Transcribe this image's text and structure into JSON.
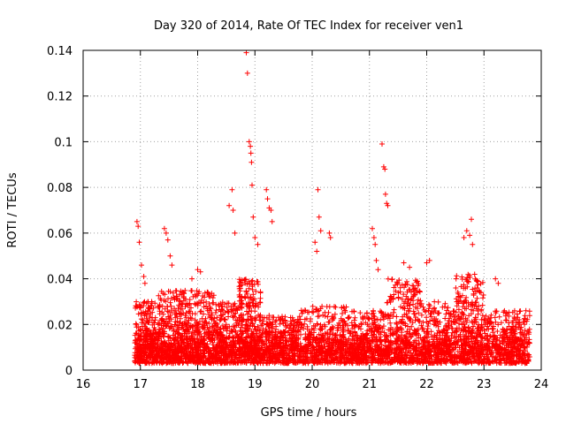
{
  "chart_data": {
    "type": "scatter",
    "title": "Day 320 of 2014, Rate Of TEC Index for receiver ven1",
    "xlabel": "GPS time / hours",
    "ylabel": "ROTI / TECUs",
    "xlim": [
      16,
      24
    ],
    "ylim": [
      0,
      0.14
    ],
    "xticks": [
      "16",
      "17",
      "18",
      "19",
      "20",
      "21",
      "22",
      "23",
      "24"
    ],
    "yticks": [
      "0",
      "0.02",
      "0.04",
      "0.06",
      "0.08",
      "0.1",
      "0.12",
      "0.14"
    ],
    "grid": true,
    "marker": "+",
    "color": "#ff0000",
    "data_range_x": [
      16.9,
      23.8
    ],
    "series": [
      {
        "name": "ven1 ROTI",
        "baseline_band": [
          0.003,
          0.02
        ],
        "notable_points": [
          {
            "x": 16.94,
            "y": 0.065
          },
          {
            "x": 16.96,
            "y": 0.063
          },
          {
            "x": 16.98,
            "y": 0.056
          },
          {
            "x": 17.02,
            "y": 0.046
          },
          {
            "x": 17.06,
            "y": 0.041
          },
          {
            "x": 17.08,
            "y": 0.038
          },
          {
            "x": 17.42,
            "y": 0.062
          },
          {
            "x": 17.45,
            "y": 0.06
          },
          {
            "x": 17.48,
            "y": 0.057
          },
          {
            "x": 17.52,
            "y": 0.05
          },
          {
            "x": 17.55,
            "y": 0.046
          },
          {
            "x": 17.9,
            "y": 0.04
          },
          {
            "x": 18.0,
            "y": 0.044
          },
          {
            "x": 18.05,
            "y": 0.043
          },
          {
            "x": 18.55,
            "y": 0.072
          },
          {
            "x": 18.6,
            "y": 0.079
          },
          {
            "x": 18.62,
            "y": 0.07
          },
          {
            "x": 18.65,
            "y": 0.06
          },
          {
            "x": 18.85,
            "y": 0.139
          },
          {
            "x": 18.87,
            "y": 0.13
          },
          {
            "x": 18.9,
            "y": 0.1
          },
          {
            "x": 18.92,
            "y": 0.098
          },
          {
            "x": 18.93,
            "y": 0.095
          },
          {
            "x": 18.94,
            "y": 0.091
          },
          {
            "x": 18.95,
            "y": 0.081
          },
          {
            "x": 18.97,
            "y": 0.067
          },
          {
            "x": 19.0,
            "y": 0.058
          },
          {
            "x": 19.05,
            "y": 0.055
          },
          {
            "x": 19.2,
            "y": 0.079
          },
          {
            "x": 19.22,
            "y": 0.075
          },
          {
            "x": 19.25,
            "y": 0.071
          },
          {
            "x": 19.28,
            "y": 0.07
          },
          {
            "x": 19.3,
            "y": 0.065
          },
          {
            "x": 20.05,
            "y": 0.056
          },
          {
            "x": 20.08,
            "y": 0.052
          },
          {
            "x": 20.1,
            "y": 0.079
          },
          {
            "x": 20.12,
            "y": 0.067
          },
          {
            "x": 20.15,
            "y": 0.061
          },
          {
            "x": 20.3,
            "y": 0.06
          },
          {
            "x": 20.32,
            "y": 0.058
          },
          {
            "x": 21.05,
            "y": 0.062
          },
          {
            "x": 21.08,
            "y": 0.058
          },
          {
            "x": 21.1,
            "y": 0.055
          },
          {
            "x": 21.12,
            "y": 0.048
          },
          {
            "x": 21.15,
            "y": 0.044
          },
          {
            "x": 21.22,
            "y": 0.099
          },
          {
            "x": 21.25,
            "y": 0.089
          },
          {
            "x": 21.27,
            "y": 0.088
          },
          {
            "x": 21.28,
            "y": 0.077
          },
          {
            "x": 21.3,
            "y": 0.073
          },
          {
            "x": 21.32,
            "y": 0.072
          },
          {
            "x": 21.6,
            "y": 0.047
          },
          {
            "x": 21.7,
            "y": 0.045
          },
          {
            "x": 22.0,
            "y": 0.047
          },
          {
            "x": 22.05,
            "y": 0.048
          },
          {
            "x": 22.65,
            "y": 0.058
          },
          {
            "x": 22.7,
            "y": 0.061
          },
          {
            "x": 22.75,
            "y": 0.059
          },
          {
            "x": 22.78,
            "y": 0.066
          },
          {
            "x": 22.8,
            "y": 0.055
          },
          {
            "x": 23.2,
            "y": 0.04
          },
          {
            "x": 23.25,
            "y": 0.038
          }
        ],
        "clusters": [
          {
            "x_from": 16.9,
            "x_to": 17.3,
            "y_max": 0.03,
            "n": 260
          },
          {
            "x_from": 17.3,
            "x_to": 17.7,
            "y_max": 0.035,
            "n": 230
          },
          {
            "x_from": 17.7,
            "x_to": 18.3,
            "y_max": 0.035,
            "n": 340
          },
          {
            "x_from": 18.3,
            "x_to": 18.7,
            "y_max": 0.03,
            "n": 220
          },
          {
            "x_from": 18.7,
            "x_to": 19.1,
            "y_max": 0.04,
            "n": 300
          },
          {
            "x_from": 19.1,
            "x_to": 19.8,
            "y_max": 0.024,
            "n": 300
          },
          {
            "x_from": 19.8,
            "x_to": 20.6,
            "y_max": 0.028,
            "n": 320
          },
          {
            "x_from": 20.6,
            "x_to": 21.3,
            "y_max": 0.026,
            "n": 280
          },
          {
            "x_from": 21.3,
            "x_to": 21.9,
            "y_max": 0.04,
            "n": 300
          },
          {
            "x_from": 21.9,
            "x_to": 22.5,
            "y_max": 0.03,
            "n": 260
          },
          {
            "x_from": 22.5,
            "x_to": 23.0,
            "y_max": 0.042,
            "n": 280
          },
          {
            "x_from": 23.0,
            "x_to": 23.8,
            "y_max": 0.026,
            "n": 300
          }
        ]
      }
    ]
  }
}
